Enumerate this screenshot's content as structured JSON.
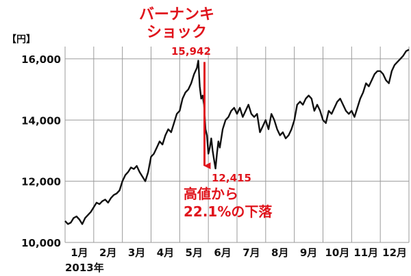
{
  "chart_data": {
    "type": "line",
    "title": "",
    "ylabel": "【円】",
    "xlabel": "2013年",
    "ylim": [
      10000,
      16400
    ],
    "yticks": [
      10000,
      12000,
      14000,
      16000
    ],
    "ytick_labels": [
      "10,000",
      "12,000",
      "14,000",
      "16,000"
    ],
    "xlim": [
      0,
      12
    ],
    "x_categories": [
      "1月",
      "2月",
      "3月",
      "4月",
      "5月",
      "6月",
      "7月",
      "8月",
      "9月",
      "10月",
      "11月",
      "12月"
    ],
    "grid": {
      "x": true,
      "y": true
    },
    "legend": "none",
    "colors": {
      "line": "#111111",
      "grid": "#9a9a9a",
      "annotation": "#e0141c"
    },
    "series": [
      {
        "x": [
          0.0,
          0.1,
          0.2,
          0.3,
          0.4,
          0.5,
          0.6,
          0.7,
          0.8,
          0.9,
          1.0,
          1.1,
          1.2,
          1.3,
          1.4,
          1.5,
          1.6,
          1.7,
          1.8,
          1.9,
          2.0,
          2.1,
          2.2,
          2.3,
          2.4,
          2.5,
          2.6,
          2.7,
          2.8,
          2.9,
          3.0,
          3.1,
          3.2,
          3.3,
          3.4,
          3.5,
          3.6,
          3.7,
          3.8,
          3.9,
          4.0,
          4.1,
          4.2,
          4.3,
          4.4,
          4.5,
          4.6,
          4.65,
          4.7,
          4.75,
          4.8,
          4.85,
          4.9,
          4.95,
          5.0,
          5.05,
          5.1,
          5.15,
          5.2,
          5.25,
          5.3,
          5.35,
          5.4,
          5.45,
          5.5,
          5.6,
          5.7,
          5.8,
          5.9,
          6.0,
          6.1,
          6.2,
          6.3,
          6.4,
          6.5,
          6.6,
          6.7,
          6.8,
          6.9,
          7.0,
          7.1,
          7.2,
          7.3,
          7.4,
          7.5,
          7.6,
          7.7,
          7.8,
          7.9,
          8.0,
          8.1,
          8.2,
          8.3,
          8.4,
          8.5,
          8.6,
          8.7,
          8.8,
          8.9,
          9.0,
          9.1,
          9.2,
          9.3,
          9.4,
          9.5,
          9.6,
          9.7,
          9.8,
          9.9,
          10.0,
          10.1,
          10.2,
          10.3,
          10.4,
          10.5,
          10.6,
          10.7,
          10.8,
          10.9,
          11.0,
          11.1,
          11.2,
          11.3,
          11.4,
          11.5,
          11.6,
          11.7,
          11.8,
          11.9,
          12.0
        ],
        "values": [
          10700,
          10600,
          10650,
          10800,
          10850,
          10750,
          10600,
          10800,
          10900,
          11000,
          11150,
          11300,
          11250,
          11350,
          11400,
          11300,
          11450,
          11550,
          11600,
          11700,
          12000,
          12200,
          12300,
          12450,
          12400,
          12500,
          12300,
          12150,
          12000,
          12300,
          12800,
          12900,
          13100,
          13300,
          13200,
          13500,
          13700,
          13600,
          13900,
          14200,
          14300,
          14700,
          14900,
          15000,
          15200,
          15500,
          15700,
          15942,
          15100,
          14700,
          14800,
          14500,
          13700,
          13500,
          12900,
          13100,
          13400,
          13000,
          12700,
          12415,
          12900,
          13300,
          13100,
          13400,
          13700,
          14000,
          14100,
          14300,
          14400,
          14200,
          14400,
          14100,
          14300,
          14500,
          14200,
          14100,
          14200,
          13600,
          13800,
          14000,
          13700,
          14200,
          14000,
          13700,
          13500,
          13600,
          13400,
          13500,
          13700,
          14000,
          14500,
          14600,
          14500,
          14700,
          14800,
          14700,
          14300,
          14500,
          14300,
          14000,
          13900,
          14300,
          14200,
          14400,
          14600,
          14700,
          14500,
          14300,
          14200,
          14300,
          14100,
          14400,
          14700,
          14900,
          15200,
          15100,
          15300,
          15500,
          15600,
          15600,
          15500,
          15300,
          15200,
          15600,
          15800,
          15900,
          16000,
          16100,
          16250,
          16300
        ]
      }
    ],
    "annotations": {
      "event_line1": "バーナンキ",
      "event_line2": "ショック",
      "peak_label": "15,942",
      "trough_label": "12,415",
      "drop_line1": "高値から",
      "drop_line2": "22.1%の下落",
      "peak_x": 4.65,
      "peak_value": 15942,
      "trough_x": 5.25,
      "trough_value": 12415
    }
  }
}
